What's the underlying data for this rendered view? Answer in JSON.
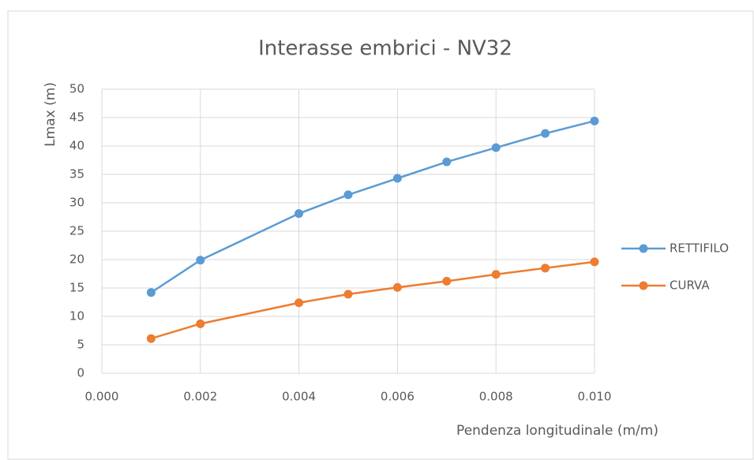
{
  "chart_data": {
    "type": "line",
    "title": "Interasse embrici - NV32",
    "x_label": "Pendenza longitudinale (m/m)",
    "y_label": "Lmax (m)",
    "x": [
      0.001,
      0.002,
      0.004,
      0.005,
      0.006,
      0.007,
      0.008,
      0.009,
      0.01
    ],
    "series": [
      {
        "name": "RETTIFILO",
        "color": "#5b9bd5",
        "values": [
          14.2,
          19.9,
          28.1,
          31.4,
          34.3,
          37.2,
          39.7,
          42.2,
          44.4
        ]
      },
      {
        "name": "CURVA",
        "color": "#ed7d31",
        "values": [
          6.1,
          8.7,
          12.4,
          13.9,
          15.1,
          16.2,
          17.4,
          18.5,
          19.6
        ]
      }
    ],
    "xlim": [
      0,
      0.01
    ],
    "ylim": [
      0,
      50
    ],
    "xticks": [
      {
        "value": 0,
        "label": "0.000"
      },
      {
        "value": 0.002,
        "label": "0.002"
      },
      {
        "value": 0.004,
        "label": "0.004"
      },
      {
        "value": 0.006,
        "label": "0.006"
      },
      {
        "value": 0.008,
        "label": "0.008"
      },
      {
        "value": 0.01,
        "label": "0.010"
      }
    ],
    "yticks": [
      0,
      5,
      10,
      15,
      20,
      25,
      30,
      35,
      40,
      45,
      50
    ],
    "grid": true,
    "legend": "right"
  }
}
